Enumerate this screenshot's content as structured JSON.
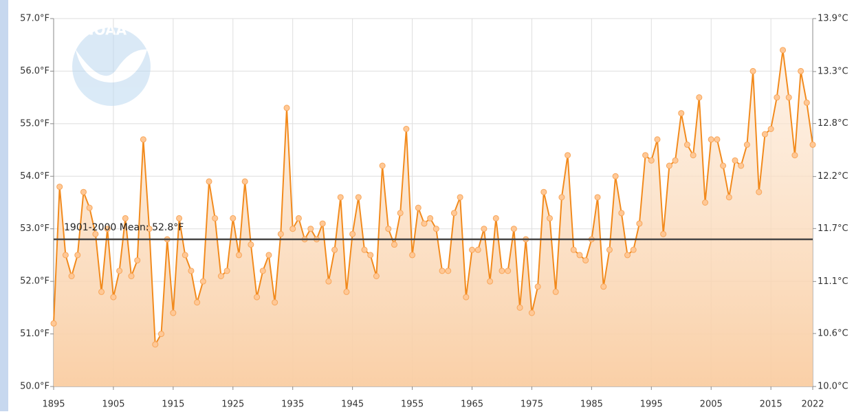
{
  "chart_data": {
    "type": "line",
    "logo": "NOAA",
    "x": [
      1895,
      1896,
      1897,
      1898,
      1899,
      1900,
      1901,
      1902,
      1903,
      1904,
      1905,
      1906,
      1907,
      1908,
      1909,
      1910,
      1911,
      1912,
      1913,
      1914,
      1915,
      1916,
      1917,
      1918,
      1919,
      1920,
      1921,
      1922,
      1923,
      1924,
      1925,
      1926,
      1927,
      1928,
      1929,
      1930,
      1931,
      1932,
      1933,
      1934,
      1935,
      1936,
      1937,
      1938,
      1939,
      1940,
      1941,
      1942,
      1943,
      1944,
      1945,
      1946,
      1947,
      1948,
      1949,
      1950,
      1951,
      1952,
      1953,
      1954,
      1955,
      1956,
      1957,
      1958,
      1959,
      1960,
      1961,
      1962,
      1963,
      1964,
      1965,
      1966,
      1967,
      1968,
      1969,
      1970,
      1971,
      1972,
      1973,
      1974,
      1975,
      1976,
      1977,
      1978,
      1979,
      1980,
      1981,
      1982,
      1983,
      1984,
      1985,
      1986,
      1987,
      1988,
      1989,
      1990,
      1991,
      1992,
      1993,
      1994,
      1995,
      1996,
      1997,
      1998,
      1999,
      2000,
      2001,
      2002,
      2003,
      2004,
      2005,
      2006,
      2007,
      2008,
      2009,
      2010,
      2011,
      2012,
      2013,
      2014,
      2015,
      2016,
      2017,
      2018,
      2019,
      2020,
      2021,
      2022
    ],
    "series": [
      {
        "color": "#f28a1c",
        "values": [
          51.2,
          53.8,
          52.5,
          52.1,
          52.5,
          53.7,
          53.4,
          52.9,
          51.8,
          53.0,
          51.7,
          52.2,
          53.2,
          52.1,
          52.4,
          54.7,
          53.0,
          50.8,
          51.0,
          52.8,
          51.4,
          53.2,
          52.5,
          52.2,
          51.6,
          52.0,
          53.9,
          53.2,
          52.1,
          52.2,
          53.2,
          52.5,
          53.9,
          52.7,
          51.7,
          52.2,
          52.5,
          51.6,
          52.9,
          55.3,
          53.0,
          53.2,
          52.8,
          53.0,
          52.8,
          53.1,
          52.0,
          52.6,
          53.6,
          51.8,
          52.9,
          53.6,
          52.6,
          52.5,
          52.1,
          54.2,
          53.0,
          52.7,
          53.3,
          54.9,
          52.5,
          53.4,
          53.1,
          53.2,
          53.0,
          52.2,
          52.2,
          53.3,
          53.6,
          51.7,
          52.6,
          52.6,
          53.0,
          52.0,
          53.2,
          52.2,
          52.2,
          53.0,
          51.5,
          52.8,
          51.4,
          51.9,
          53.7,
          53.2,
          51.8,
          53.6,
          54.4,
          52.6,
          52.5,
          52.4,
          52.8,
          53.6,
          51.9,
          52.6,
          54.0,
          53.3,
          52.5,
          52.6,
          53.1,
          54.4,
          54.3,
          54.7,
          52.9,
          54.2,
          54.3,
          55.2,
          54.6,
          54.4,
          55.5,
          53.5,
          54.7,
          54.7,
          54.2,
          53.6,
          54.3,
          54.2,
          54.6,
          56.0,
          53.7,
          54.8,
          54.9,
          55.5,
          56.4,
          55.5,
          54.4,
          56.0,
          55.4,
          54.6
        ]
      }
    ],
    "mean": {
      "value": 52.8,
      "label": "1901-2000 Mean: 52.8°F"
    },
    "xlim": [
      1895,
      2022
    ],
    "xticks": [
      1895,
      1905,
      1915,
      1925,
      1935,
      1945,
      1955,
      1965,
      1975,
      1985,
      1995,
      2005,
      2015,
      2022
    ],
    "ylim": [
      50,
      57
    ],
    "yticks": [
      {
        "value": 50,
        "label": "50.0°F"
      },
      {
        "value": 51,
        "label": "51.0°F"
      },
      {
        "value": 52,
        "label": "52.0°F"
      },
      {
        "value": 53,
        "label": "53.0°F"
      },
      {
        "value": 54,
        "label": "54.0°F"
      },
      {
        "value": 55,
        "label": "55.0°F"
      },
      {
        "value": 56,
        "label": "56.0°F"
      },
      {
        "value": 57,
        "label": "57.0°F"
      }
    ],
    "y2lim": [
      10,
      13.89
    ],
    "y2ticks": [
      {
        "value": 10,
        "label": "10.0°C"
      },
      {
        "value": 10.56,
        "label": "10.6°C"
      },
      {
        "value": 11.11,
        "label": "11.1°C"
      },
      {
        "value": 11.67,
        "label": "11.7°C"
      },
      {
        "value": 12.22,
        "label": "12.2°C"
      },
      {
        "value": 12.78,
        "label": "12.8°C"
      },
      {
        "value": 13.33,
        "label": "13.3°C"
      },
      {
        "value": 13.89,
        "label": "13.9°C"
      }
    ],
    "grid": true
  }
}
